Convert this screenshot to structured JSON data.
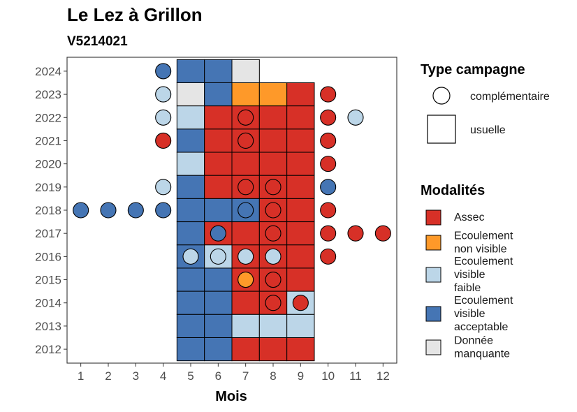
{
  "chart_data": {
    "type": "heatmap",
    "title": "Le Lez à Grillon",
    "subtitle": "V5214021",
    "xlabel": "Mois",
    "ylabel": "",
    "x_ticks": [
      1,
      2,
      3,
      4,
      5,
      6,
      7,
      8,
      9,
      10,
      11,
      12
    ],
    "y_ticks": [
      2024,
      2023,
      2022,
      2021,
      2020,
      2019,
      2018,
      2017,
      2016,
      2015,
      2014,
      2013,
      2012
    ],
    "xlim": [
      0.5,
      12.5
    ],
    "ylim": [
      2011.4,
      2024.6
    ],
    "grid": false,
    "colors": {
      "Assec": "#d73027",
      "Ecoulement non visible": "#fe9929",
      "Ecoulement visible faible": "#bcd6e8",
      "Ecoulement visible acceptable": "#4575b4",
      "Donnée manquante": "#e5e5e5"
    },
    "legend_campagne": {
      "title": "Type campagne",
      "entries": [
        "complémentaire",
        "usuelle"
      ]
    },
    "legend_modalites": {
      "title": "Modalités",
      "entries": [
        {
          "key": "Assec",
          "lines": [
            "Assec"
          ]
        },
        {
          "key": "Ecoulement non visible",
          "lines": [
            "Ecoulement",
            "non visible"
          ]
        },
        {
          "key": "Ecoulement visible faible",
          "lines": [
            "Ecoulement",
            "visible",
            "faible"
          ]
        },
        {
          "key": "Ecoulement visible acceptable",
          "lines": [
            "Ecoulement",
            "visible",
            "acceptable"
          ]
        },
        {
          "key": "Donnée manquante",
          "lines": [
            "Donnée",
            "manquante"
          ]
        }
      ]
    },
    "usuelle": [
      {
        "year": 2024,
        "month": 5,
        "modalite": "Ecoulement visible acceptable"
      },
      {
        "year": 2024,
        "month": 6,
        "modalite": "Ecoulement visible acceptable"
      },
      {
        "year": 2024,
        "month": 7,
        "modalite": "Donnée manquante"
      },
      {
        "year": 2023,
        "month": 5,
        "modalite": "Donnée manquante"
      },
      {
        "year": 2023,
        "month": 6,
        "modalite": "Ecoulement visible acceptable"
      },
      {
        "year": 2023,
        "month": 7,
        "modalite": "Ecoulement non visible"
      },
      {
        "year": 2023,
        "month": 8,
        "modalite": "Ecoulement non visible"
      },
      {
        "year": 2023,
        "month": 9,
        "modalite": "Assec"
      },
      {
        "year": 2022,
        "month": 5,
        "modalite": "Ecoulement visible faible"
      },
      {
        "year": 2022,
        "month": 6,
        "modalite": "Assec"
      },
      {
        "year": 2022,
        "month": 7,
        "modalite": "Assec"
      },
      {
        "year": 2022,
        "month": 8,
        "modalite": "Assec"
      },
      {
        "year": 2022,
        "month": 9,
        "modalite": "Assec"
      },
      {
        "year": 2021,
        "month": 5,
        "modalite": "Ecoulement visible acceptable"
      },
      {
        "year": 2021,
        "month": 6,
        "modalite": "Assec"
      },
      {
        "year": 2021,
        "month": 7,
        "modalite": "Assec"
      },
      {
        "year": 2021,
        "month": 8,
        "modalite": "Assec"
      },
      {
        "year": 2021,
        "month": 9,
        "modalite": "Assec"
      },
      {
        "year": 2020,
        "month": 5,
        "modalite": "Ecoulement visible faible"
      },
      {
        "year": 2020,
        "month": 6,
        "modalite": "Assec"
      },
      {
        "year": 2020,
        "month": 7,
        "modalite": "Assec"
      },
      {
        "year": 2020,
        "month": 8,
        "modalite": "Assec"
      },
      {
        "year": 2020,
        "month": 9,
        "modalite": "Assec"
      },
      {
        "year": 2019,
        "month": 5,
        "modalite": "Ecoulement visible acceptable"
      },
      {
        "year": 2019,
        "month": 6,
        "modalite": "Assec"
      },
      {
        "year": 2019,
        "month": 7,
        "modalite": "Assec"
      },
      {
        "year": 2019,
        "month": 8,
        "modalite": "Assec"
      },
      {
        "year": 2019,
        "month": 9,
        "modalite": "Assec"
      },
      {
        "year": 2018,
        "month": 5,
        "modalite": "Ecoulement visible acceptable"
      },
      {
        "year": 2018,
        "month": 6,
        "modalite": "Ecoulement visible acceptable"
      },
      {
        "year": 2018,
        "month": 7,
        "modalite": "Ecoulement visible acceptable"
      },
      {
        "year": 2018,
        "month": 8,
        "modalite": "Assec"
      },
      {
        "year": 2018,
        "month": 9,
        "modalite": "Assec"
      },
      {
        "year": 2017,
        "month": 5,
        "modalite": "Ecoulement visible acceptable"
      },
      {
        "year": 2017,
        "month": 6,
        "modalite": "Assec"
      },
      {
        "year": 2017,
        "month": 7,
        "modalite": "Assec"
      },
      {
        "year": 2017,
        "month": 8,
        "modalite": "Assec"
      },
      {
        "year": 2017,
        "month": 9,
        "modalite": "Assec"
      },
      {
        "year": 2016,
        "month": 5,
        "modalite": "Ecoulement visible acceptable"
      },
      {
        "year": 2016,
        "month": 6,
        "modalite": "Ecoulement visible faible"
      },
      {
        "year": 2016,
        "month": 7,
        "modalite": "Assec"
      },
      {
        "year": 2016,
        "month": 8,
        "modalite": "Assec"
      },
      {
        "year": 2016,
        "month": 9,
        "modalite": "Assec"
      },
      {
        "year": 2015,
        "month": 5,
        "modalite": "Ecoulement visible acceptable"
      },
      {
        "year": 2015,
        "month": 6,
        "modalite": "Ecoulement visible acceptable"
      },
      {
        "year": 2015,
        "month": 7,
        "modalite": "Assec"
      },
      {
        "year": 2015,
        "month": 8,
        "modalite": "Assec"
      },
      {
        "year": 2015,
        "month": 9,
        "modalite": "Assec"
      },
      {
        "year": 2014,
        "month": 5,
        "modalite": "Ecoulement visible acceptable"
      },
      {
        "year": 2014,
        "month": 6,
        "modalite": "Ecoulement visible acceptable"
      },
      {
        "year": 2014,
        "month": 7,
        "modalite": "Assec"
      },
      {
        "year": 2014,
        "month": 8,
        "modalite": "Assec"
      },
      {
        "year": 2014,
        "month": 9,
        "modalite": "Ecoulement visible faible"
      },
      {
        "year": 2013,
        "month": 5,
        "modalite": "Ecoulement visible acceptable"
      },
      {
        "year": 2013,
        "month": 6,
        "modalite": "Ecoulement visible acceptable"
      },
      {
        "year": 2013,
        "month": 7,
        "modalite": "Ecoulement visible faible"
      },
      {
        "year": 2013,
        "month": 8,
        "modalite": "Ecoulement visible faible"
      },
      {
        "year": 2013,
        "month": 9,
        "modalite": "Ecoulement visible faible"
      },
      {
        "year": 2012,
        "month": 5,
        "modalite": "Ecoulement visible acceptable"
      },
      {
        "year": 2012,
        "month": 6,
        "modalite": "Ecoulement visible acceptable"
      },
      {
        "year": 2012,
        "month": 7,
        "modalite": "Assec"
      },
      {
        "year": 2012,
        "month": 8,
        "modalite": "Assec"
      },
      {
        "year": 2012,
        "month": 9,
        "modalite": "Assec"
      }
    ],
    "complementaire": [
      {
        "year": 2024,
        "month": 4,
        "modalite": "Ecoulement visible acceptable"
      },
      {
        "year": 2023,
        "month": 4,
        "modalite": "Ecoulement visible faible"
      },
      {
        "year": 2023,
        "month": 10,
        "modalite": "Assec"
      },
      {
        "year": 2022,
        "month": 4,
        "modalite": "Ecoulement visible faible"
      },
      {
        "year": 2022,
        "month": 7,
        "modalite": "Assec"
      },
      {
        "year": 2022,
        "month": 10,
        "modalite": "Assec"
      },
      {
        "year": 2022,
        "month": 11,
        "modalite": "Ecoulement visible faible"
      },
      {
        "year": 2021,
        "month": 4,
        "modalite": "Assec"
      },
      {
        "year": 2021,
        "month": 7,
        "modalite": "Assec"
      },
      {
        "year": 2021,
        "month": 10,
        "modalite": "Assec"
      },
      {
        "year": 2020,
        "month": 10,
        "modalite": "Assec"
      },
      {
        "year": 2019,
        "month": 4,
        "modalite": "Ecoulement visible faible"
      },
      {
        "year": 2019,
        "month": 7,
        "modalite": "Assec"
      },
      {
        "year": 2019,
        "month": 8,
        "modalite": "Assec"
      },
      {
        "year": 2019,
        "month": 10,
        "modalite": "Ecoulement visible acceptable"
      },
      {
        "year": 2018,
        "month": 1,
        "modalite": "Ecoulement visible acceptable"
      },
      {
        "year": 2018,
        "month": 2,
        "modalite": "Ecoulement visible acceptable"
      },
      {
        "year": 2018,
        "month": 3,
        "modalite": "Ecoulement visible acceptable"
      },
      {
        "year": 2018,
        "month": 4,
        "modalite": "Ecoulement visible acceptable"
      },
      {
        "year": 2018,
        "month": 7,
        "modalite": "Ecoulement visible acceptable"
      },
      {
        "year": 2018,
        "month": 8,
        "modalite": "Assec"
      },
      {
        "year": 2018,
        "month": 10,
        "modalite": "Assec"
      },
      {
        "year": 2017,
        "month": 6,
        "modalite": "Ecoulement visible acceptable"
      },
      {
        "year": 2017,
        "month": 8,
        "modalite": "Assec"
      },
      {
        "year": 2017,
        "month": 10,
        "modalite": "Assec"
      },
      {
        "year": 2017,
        "month": 11,
        "modalite": "Assec"
      },
      {
        "year": 2017,
        "month": 12,
        "modalite": "Assec"
      },
      {
        "year": 2016,
        "month": 5,
        "modalite": "Ecoulement visible faible"
      },
      {
        "year": 2016,
        "month": 6,
        "modalite": "Ecoulement visible faible"
      },
      {
        "year": 2016,
        "month": 7,
        "modalite": "Ecoulement visible faible"
      },
      {
        "year": 2016,
        "month": 8,
        "modalite": "Ecoulement visible faible"
      },
      {
        "year": 2016,
        "month": 10,
        "modalite": "Assec"
      },
      {
        "year": 2015,
        "month": 7,
        "modalite": "Ecoulement non visible"
      },
      {
        "year": 2015,
        "month": 8,
        "modalite": "Assec"
      },
      {
        "year": 2014,
        "month": 8,
        "modalite": "Assec"
      },
      {
        "year": 2014,
        "month": 9,
        "modalite": "Assec"
      }
    ]
  }
}
